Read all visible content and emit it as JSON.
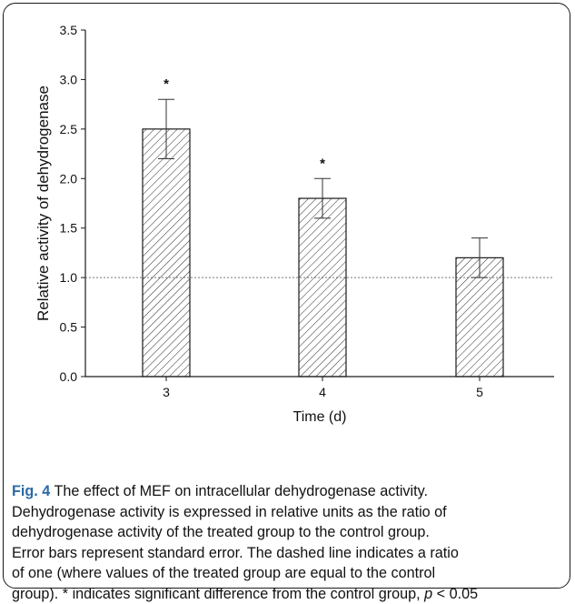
{
  "chart_data": {
    "type": "bar",
    "categories": [
      "3",
      "4",
      "5"
    ],
    "values": [
      2.5,
      1.8,
      1.2
    ],
    "error": [
      0.3,
      0.2,
      0.2
    ],
    "significance": [
      "*",
      "*",
      ""
    ],
    "reference_line": 1.0,
    "xlabel": "Time (d)",
    "ylabel": "Relative activity of dehydrogenase",
    "ylim": [
      0,
      3.5
    ],
    "yticks": [
      "0.0",
      "0.5",
      "1.0",
      "1.5",
      "2.0",
      "2.5",
      "3.0",
      "3.5"
    ],
    "bar_pattern": "diagonal-hatch",
    "grid": false
  },
  "caption": {
    "label": "Fig. 4",
    "lines": [
      "The effect of MEF on intracellular dehydrogenase activity.",
      "Dehydrogenase activity is expressed in relative units as the ratio of",
      "dehydrogenase activity of the treated group to the control group.",
      "Error bars represent standard error. The dashed line indicates a ratio",
      "of one (where values of the treated group are equal to the control",
      "group). * indicates significant difference from the control group, "
    ],
    "p_symbol": "p",
    "p_threshold": " < 0.05"
  },
  "colors": {
    "line": "#1a1a1a",
    "reference": "#777777",
    "label": "#2b6aa6"
  }
}
